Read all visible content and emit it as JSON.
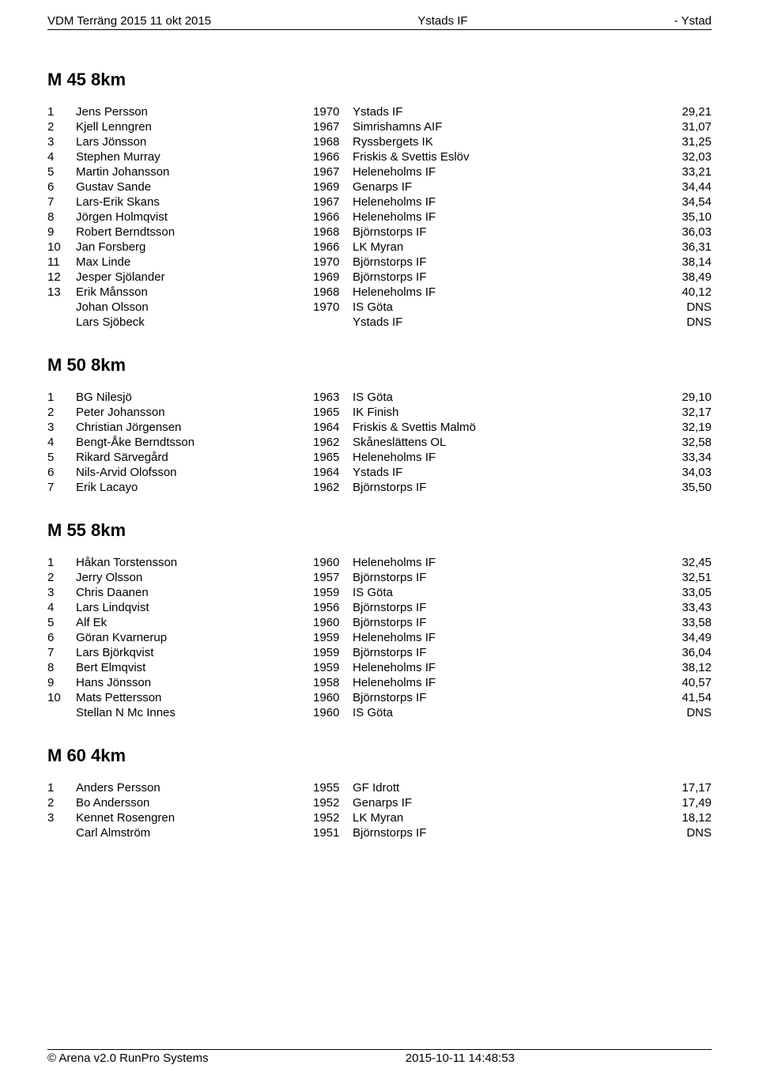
{
  "header": {
    "left": "VDM Terräng 2015 11 okt 2015",
    "center": "Ystads IF",
    "right": "- Ystad"
  },
  "footer": {
    "left": "© Arena v2.0 RunPro Systems",
    "center": "2015-10-11 14:48:53"
  },
  "sections": [
    {
      "title": "M 45 8km",
      "rows": [
        {
          "p": "1",
          "name": "Jens Persson",
          "year": "1970",
          "club": "Ystads IF",
          "time": "29,21"
        },
        {
          "p": "2",
          "name": "Kjell Lenngren",
          "year": "1967",
          "club": "Simrishamns AIF",
          "time": "31,07"
        },
        {
          "p": "3",
          "name": "Lars Jönsson",
          "year": "1968",
          "club": "Ryssbergets IK",
          "time": "31,25"
        },
        {
          "p": "4",
          "name": "Stephen Murray",
          "year": "1966",
          "club": "Friskis & Svettis Eslöv",
          "time": "32,03"
        },
        {
          "p": "5",
          "name": "Martin Johansson",
          "year": "1967",
          "club": "Heleneholms IF",
          "time": "33,21"
        },
        {
          "p": "6",
          "name": "Gustav Sande",
          "year": "1969",
          "club": "Genarps IF",
          "time": "34,44"
        },
        {
          "p": "7",
          "name": "Lars-Erik Skans",
          "year": "1967",
          "club": "Heleneholms IF",
          "time": "34,54"
        },
        {
          "p": "8",
          "name": "Jörgen Holmqvist",
          "year": "1966",
          "club": "Heleneholms IF",
          "time": "35,10"
        },
        {
          "p": "9",
          "name": "Robert Berndtsson",
          "year": "1968",
          "club": "Björnstorps IF",
          "time": "36,03"
        },
        {
          "p": "10",
          "name": "Jan Forsberg",
          "year": "1966",
          "club": "LK Myran",
          "time": "36,31"
        },
        {
          "p": "11",
          "name": "Max Linde",
          "year": "1970",
          "club": "Björnstorps IF",
          "time": "38,14"
        },
        {
          "p": "12",
          "name": "Jesper Sjölander",
          "year": "1969",
          "club": "Björnstorps IF",
          "time": "38,49"
        },
        {
          "p": "13",
          "name": "Erik Månsson",
          "year": "1968",
          "club": "Heleneholms IF",
          "time": "40,12"
        },
        {
          "p": "",
          "name": "Johan Olsson",
          "year": "1970",
          "club": "IS Göta",
          "time": "DNS"
        },
        {
          "p": "",
          "name": "Lars Sjöbeck",
          "year": "",
          "club": "Ystads IF",
          "time": "DNS"
        }
      ]
    },
    {
      "title": "M 50 8km",
      "rows": [
        {
          "p": "1",
          "name": "BG Nilesjö",
          "year": "1963",
          "club": "IS Göta",
          "time": "29,10"
        },
        {
          "p": "2",
          "name": "Peter Johansson",
          "year": "1965",
          "club": "IK Finish",
          "time": "32,17"
        },
        {
          "p": "3",
          "name": "Christian Jörgensen",
          "year": "1964",
          "club": "Friskis & Svettis Malmö",
          "time": "32,19"
        },
        {
          "p": "4",
          "name": "Bengt-Åke Berndtsson",
          "year": "1962",
          "club": "Skåneslättens OL",
          "time": "32,58"
        },
        {
          "p": "5",
          "name": "Rikard Särvegård",
          "year": "1965",
          "club": "Heleneholms IF",
          "time": "33,34"
        },
        {
          "p": "6",
          "name": "Nils-Arvid Olofsson",
          "year": "1964",
          "club": "Ystads IF",
          "time": "34,03"
        },
        {
          "p": "7",
          "name": "Erik Lacayo",
          "year": "1962",
          "club": "Björnstorps IF",
          "time": "35,50"
        }
      ]
    },
    {
      "title": "M 55 8km",
      "rows": [
        {
          "p": "1",
          "name": "Håkan Torstensson",
          "year": "1960",
          "club": "Heleneholms IF",
          "time": "32,45"
        },
        {
          "p": "2",
          "name": "Jerry Olsson",
          "year": "1957",
          "club": "Björnstorps IF",
          "time": "32,51"
        },
        {
          "p": "3",
          "name": "Chris Daanen",
          "year": "1959",
          "club": "IS Göta",
          "time": "33,05"
        },
        {
          "p": "4",
          "name": "Lars Lindqvist",
          "year": "1956",
          "club": "Björnstorps IF",
          "time": "33,43"
        },
        {
          "p": "5",
          "name": "Alf Ek",
          "year": "1960",
          "club": "Björnstorps IF",
          "time": "33,58"
        },
        {
          "p": "6",
          "name": "Göran Kvarnerup",
          "year": "1959",
          "club": "Heleneholms IF",
          "time": "34,49"
        },
        {
          "p": "7",
          "name": "Lars Björkqvist",
          "year": "1959",
          "club": "Björnstorps IF",
          "time": "36,04"
        },
        {
          "p": "8",
          "name": "Bert Elmqvist",
          "year": "1959",
          "club": "Heleneholms IF",
          "time": "38,12"
        },
        {
          "p": "9",
          "name": "Hans Jönsson",
          "year": "1958",
          "club": "Heleneholms IF",
          "time": "40,57"
        },
        {
          "p": "10",
          "name": "Mats Pettersson",
          "year": "1960",
          "club": "Björnstorps IF",
          "time": "41,54"
        },
        {
          "p": "",
          "name": "Stellan N Mc Innes",
          "year": "1960",
          "club": "IS Göta",
          "time": "DNS"
        }
      ]
    },
    {
      "title": "M 60 4km",
      "rows": [
        {
          "p": "1",
          "name": "Anders Persson",
          "year": "1955",
          "club": "GF Idrott",
          "time": "17,17"
        },
        {
          "p": "2",
          "name": "Bo Andersson",
          "year": "1952",
          "club": "Genarps IF",
          "time": "17,49"
        },
        {
          "p": "3",
          "name": "Kennet Rosengren",
          "year": "1952",
          "club": "LK Myran",
          "time": "18,12"
        },
        {
          "p": "",
          "name": "Carl Almström",
          "year": "1951",
          "club": "Björnstorps IF",
          "time": "DNS"
        }
      ]
    }
  ]
}
